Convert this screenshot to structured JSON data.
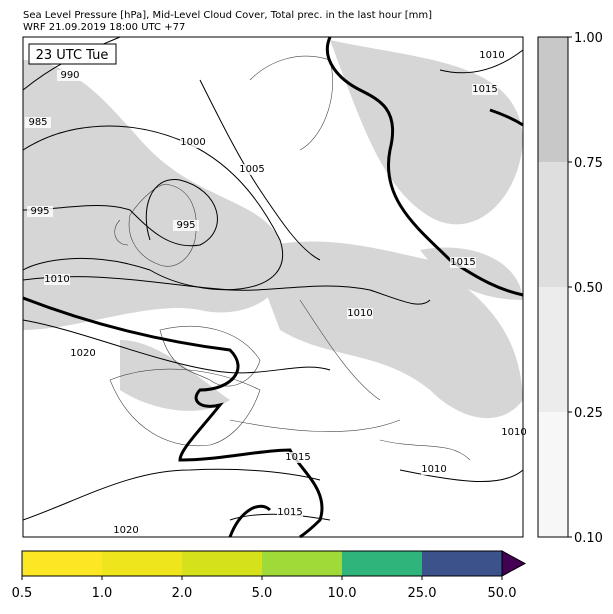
{
  "header": {
    "title": "Sea Level Pressure [hPa], Mid-Level Cloud Cover, Total prec. in the last hour [mm]",
    "subtitle": "WRF 21.09.2019 18:00 UTC +77"
  },
  "map": {
    "time_label": "23 UTC Tue",
    "isobar_labels": [
      "990",
      "985",
      "995",
      "1000",
      "1005",
      "995",
      "1010",
      "1010",
      "1015",
      "1015",
      "1010",
      "1020",
      "1015",
      "1015",
      "1020",
      "1010",
      "1010"
    ]
  },
  "cloud_colorbar": {
    "ticks": [
      "0.10",
      "0.25",
      "0.50",
      "0.75",
      "1.00"
    ],
    "colors": [
      "#f7f7f7",
      "#ececec",
      "#dedede",
      "#c8c8c8"
    ]
  },
  "precip_colorbar": {
    "ticks": [
      "0.5",
      "1.0",
      "2.0",
      "5.0",
      "10.0",
      "25.0",
      "50.0"
    ],
    "colors": [
      "#fde725",
      "#efe51c",
      "#d5e21b",
      "#a0da39",
      "#2fb47c",
      "#3b528b"
    ],
    "over_color": "#440154"
  }
}
